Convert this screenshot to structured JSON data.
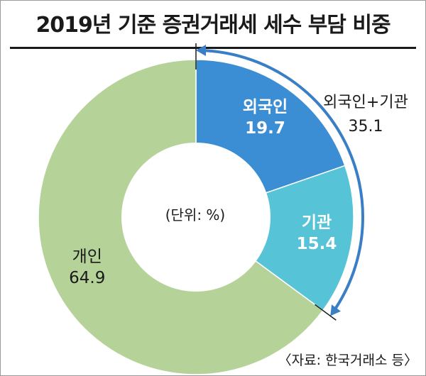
{
  "chart_data": {
    "type": "pie",
    "title": "2019년 기준 증권거래세 세수 부담 비중",
    "unit_label": "(단위: %)",
    "slices": [
      {
        "label": "외국인",
        "value": 19.7,
        "color": "#3b8ed4"
      },
      {
        "label": "기관",
        "value": 15.4,
        "color": "#57c3d6"
      },
      {
        "label": "개인",
        "value": 64.9,
        "color": "#b5d399"
      }
    ],
    "combined": {
      "label": "외국인+기관",
      "value": 35.1,
      "color": "#3a7fc6"
    },
    "source": "〈자료: 한국거래소 등〉"
  }
}
